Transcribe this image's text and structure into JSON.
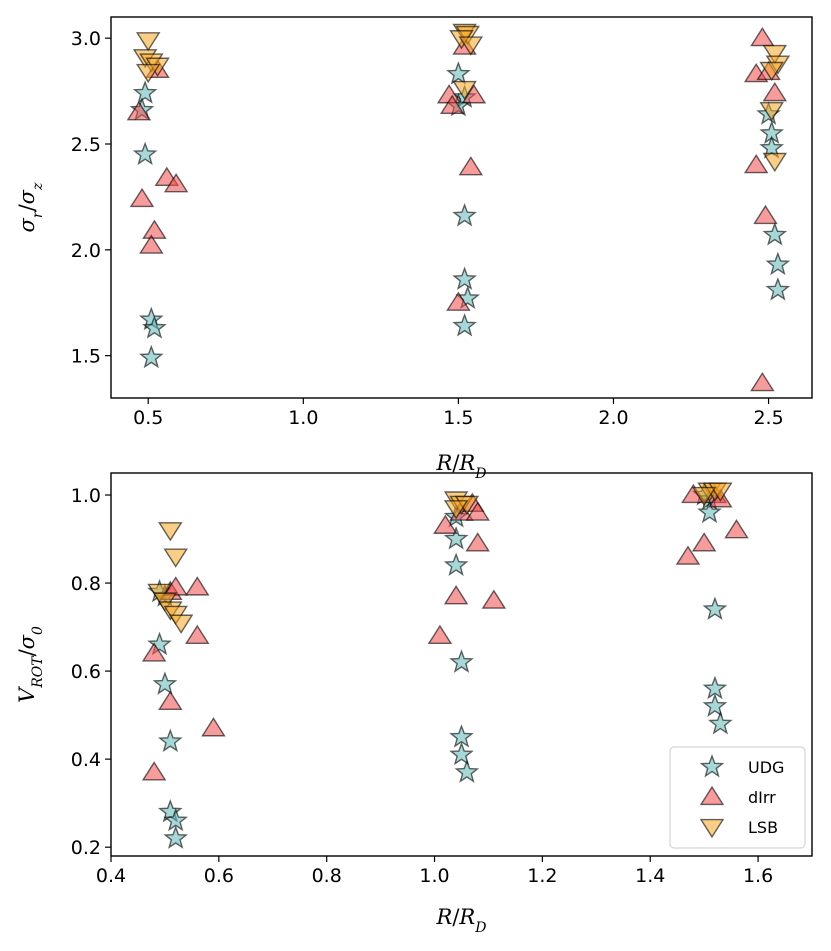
{
  "chart_data": [
    {
      "type": "scatter",
      "panel": "top",
      "xlabel": "R/R_D",
      "ylabel": "σ_r/σ_z",
      "xlim": [
        0.38,
        2.64
      ],
      "ylim": [
        1.3,
        3.1
      ],
      "xticks": [
        0.5,
        1.0,
        1.5,
        2.0,
        2.5
      ],
      "xtick_labels": [
        "0.5",
        "1.0",
        "1.5",
        "2.0",
        "2.5"
      ],
      "yticks": [
        1.5,
        2.0,
        2.5,
        3.0
      ],
      "ytick_labels": [
        "1.5",
        "2.0",
        "2.5",
        "3.0"
      ],
      "grid": false,
      "series": [
        {
          "name": "UDG",
          "marker": "star",
          "color": "#5fb6b6",
          "points": [
            [
              0.49,
              2.74
            ],
            [
              0.48,
              2.66
            ],
            [
              0.49,
              2.45
            ],
            [
              0.51,
              1.67
            ],
            [
              0.52,
              1.63
            ],
            [
              0.51,
              1.49
            ],
            [
              1.5,
              2.83
            ],
            [
              1.52,
              2.72
            ],
            [
              1.5,
              2.68
            ],
            [
              1.52,
              2.16
            ],
            [
              1.52,
              1.86
            ],
            [
              1.53,
              1.77
            ],
            [
              1.52,
              1.64
            ],
            [
              2.5,
              2.64
            ],
            [
              2.51,
              2.55
            ],
            [
              2.51,
              2.48
            ],
            [
              2.52,
              2.07
            ],
            [
              2.53,
              1.93
            ],
            [
              2.53,
              1.81
            ]
          ]
        },
        {
          "name": "dIrr",
          "marker": "triangle-up",
          "color": "#f04a4a",
          "points": [
            [
              0.47,
              2.65
            ],
            [
              0.53,
              2.85
            ],
            [
              0.56,
              2.34
            ],
            [
              0.59,
              2.31
            ],
            [
              0.48,
              2.24
            ],
            [
              0.52,
              2.09
            ],
            [
              0.51,
              2.02
            ],
            [
              1.47,
              2.73
            ],
            [
              1.48,
              2.68
            ],
            [
              1.52,
              2.96
            ],
            [
              1.55,
              2.73
            ],
            [
              1.54,
              2.39
            ],
            [
              1.5,
              1.75
            ],
            [
              2.48,
              3.0
            ],
            [
              2.46,
              2.83
            ],
            [
              2.5,
              2.84
            ],
            [
              2.52,
              2.74
            ],
            [
              2.46,
              2.4
            ],
            [
              2.49,
              2.16
            ],
            [
              2.48,
              1.37
            ]
          ]
        },
        {
          "name": "LSB",
          "marker": "triangle-down",
          "color": "#f5a623",
          "points": [
            [
              0.5,
              2.99
            ],
            [
              0.49,
              2.91
            ],
            [
              0.51,
              2.89
            ],
            [
              0.53,
              2.87
            ],
            [
              0.5,
              2.84
            ],
            [
              1.52,
              3.03
            ],
            [
              1.53,
              3.02
            ],
            [
              1.51,
              3.0
            ],
            [
              1.54,
              2.97
            ],
            [
              1.52,
              2.76
            ],
            [
              2.52,
              2.93
            ],
            [
              2.53,
              2.88
            ],
            [
              2.51,
              2.85
            ],
            [
              2.52,
              2.42
            ],
            [
              2.51,
              2.66
            ]
          ]
        }
      ]
    },
    {
      "type": "scatter",
      "panel": "bottom",
      "xlabel": "R/R_D",
      "ylabel": "V_ROT/σ_0",
      "xlim": [
        0.4,
        1.7
      ],
      "ylim": [
        0.18,
        1.05
      ],
      "xticks": [
        0.4,
        0.6,
        0.8,
        1.0,
        1.2,
        1.4,
        1.6
      ],
      "xtick_labels": [
        "0.4",
        "0.6",
        "0.8",
        "1.0",
        "1.2",
        "1.4",
        "1.6"
      ],
      "yticks": [
        0.2,
        0.4,
        0.6,
        0.8,
        1.0
      ],
      "ytick_labels": [
        "0.2",
        "0.4",
        "0.6",
        "0.8",
        "1.0"
      ],
      "grid": false,
      "legend": {
        "loc": "lower right",
        "entries": [
          "UDG",
          "dIrr",
          "LSB"
        ]
      },
      "series": [
        {
          "name": "UDG",
          "marker": "star",
          "color": "#5fb6b6",
          "points": [
            [
              0.49,
              0.78
            ],
            [
              0.5,
              0.77
            ],
            [
              0.49,
              0.66
            ],
            [
              0.5,
              0.57
            ],
            [
              0.51,
              0.44
            ],
            [
              0.51,
              0.28
            ],
            [
              0.52,
              0.26
            ],
            [
              0.52,
              0.22
            ],
            [
              1.04,
              0.95
            ],
            [
              1.04,
              0.9
            ],
            [
              1.04,
              0.84
            ],
            [
              1.05,
              0.62
            ],
            [
              1.05,
              0.45
            ],
            [
              1.05,
              0.41
            ],
            [
              1.06,
              0.37
            ],
            [
              1.5,
              1.0
            ],
            [
              1.51,
              0.99
            ],
            [
              1.51,
              0.96
            ],
            [
              1.52,
              0.74
            ],
            [
              1.52,
              0.56
            ],
            [
              1.52,
              0.52
            ],
            [
              1.53,
              0.48
            ]
          ]
        },
        {
          "name": "dIrr",
          "marker": "triangle-up",
          "color": "#f04a4a",
          "points": [
            [
              0.48,
              0.64
            ],
            [
              0.51,
              0.78
            ],
            [
              0.52,
              0.79
            ],
            [
              0.56,
              0.79
            ],
            [
              0.56,
              0.68
            ],
            [
              0.51,
              0.53
            ],
            [
              0.59,
              0.47
            ],
            [
              0.48,
              0.37
            ],
            [
              1.02,
              0.93
            ],
            [
              1.05,
              0.96
            ],
            [
              1.07,
              0.98
            ],
            [
              1.08,
              0.96
            ],
            [
              1.08,
              0.89
            ],
            [
              1.04,
              0.77
            ],
            [
              1.11,
              0.76
            ],
            [
              1.01,
              0.68
            ],
            [
              1.48,
              1.0
            ],
            [
              1.47,
              0.86
            ],
            [
              1.5,
              0.89
            ],
            [
              1.52,
              1.0
            ],
            [
              1.53,
              0.99
            ],
            [
              1.56,
              0.92
            ]
          ]
        },
        {
          "name": "LSB",
          "marker": "triangle-down",
          "color": "#f5a623",
          "points": [
            [
              0.51,
              0.92
            ],
            [
              0.52,
              0.86
            ],
            [
              0.49,
              0.78
            ],
            [
              0.5,
              0.76
            ],
            [
              0.51,
              0.74
            ],
            [
              0.52,
              0.73
            ],
            [
              0.53,
              0.71
            ],
            [
              1.04,
              0.99
            ],
            [
              1.05,
              0.98
            ],
            [
              1.06,
              0.98
            ],
            [
              1.04,
              0.97
            ],
            [
              1.51,
              1.01
            ],
            [
              1.52,
              1.01
            ],
            [
              1.53,
              1.01
            ],
            [
              1.5,
              1.0
            ]
          ]
        }
      ]
    }
  ]
}
